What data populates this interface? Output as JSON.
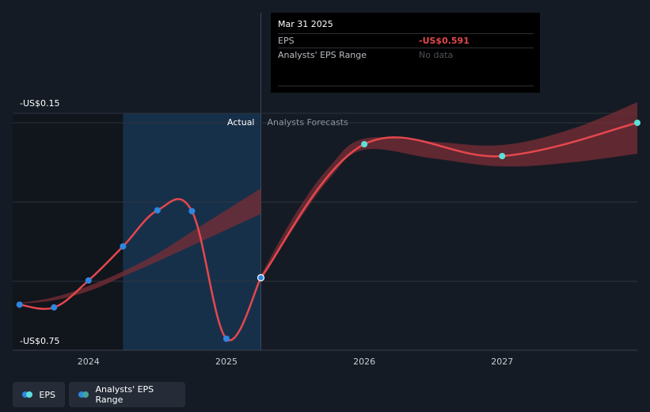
{
  "tooltip": {
    "date": "Mar 31 2025",
    "rows": [
      {
        "label": "EPS",
        "value": "-US$0.591"
      },
      {
        "label": "Analysts' EPS Range",
        "value": "No data"
      }
    ]
  },
  "legend": [
    {
      "label": "EPS",
      "colors": [
        "#2f86e0",
        "#5ce0d8"
      ]
    },
    {
      "label": "Analysts' EPS Range",
      "colors": [
        "#2f86e0",
        "#42a59c"
      ]
    }
  ],
  "colors": {
    "background": "#151b24",
    "actual_point": "#2f86e0",
    "forecast_point": "#5ce0d8",
    "line": "#e5474e",
    "band": "#7a2e36",
    "actual_region": "#17304a",
    "past_region": "#11151c"
  },
  "chart_data": {
    "type": "line",
    "title": "",
    "ylim": [
      -0.75,
      -0.15
    ],
    "y_ticks": [
      {
        "value": -0.15,
        "label": "-US$0.15"
      },
      {
        "value": -0.75,
        "label": "-US$0.75"
      }
    ],
    "y_gridlines": [
      -0.15,
      -0.2,
      -0.4,
      -0.6
    ],
    "xlim": [
      2023.45,
      2027.98
    ],
    "x_ticks": [
      {
        "value": 2024.0,
        "label": "2024"
      },
      {
        "value": 2025.0,
        "label": "2025"
      },
      {
        "value": 2026.0,
        "label": "2026"
      },
      {
        "value": 2027.0,
        "label": "2027"
      }
    ],
    "actual_region_start": 2024.25,
    "divider_x": 2025.25,
    "section_labels": {
      "actual": "Actual",
      "forecast": "Analysts Forecasts"
    },
    "series": [
      {
        "name": "EPS",
        "points": [
          {
            "x": 2023.5,
            "y": -0.659
          },
          {
            "x": 2023.75,
            "y": -0.666
          },
          {
            "x": 2024.0,
            "y": -0.598
          },
          {
            "x": 2024.25,
            "y": -0.512
          },
          {
            "x": 2024.5,
            "y": -0.421
          },
          {
            "x": 2024.75,
            "y": -0.423
          },
          {
            "x": 2025.0,
            "y": -0.745
          },
          {
            "x": 2025.25,
            "y": -0.591
          }
        ]
      },
      {
        "name": "EPS forecast",
        "points": [
          {
            "x": 2025.25,
            "y": -0.591
          },
          {
            "x": 2026.0,
            "y": -0.254
          },
          {
            "x": 2027.0,
            "y": -0.284
          },
          {
            "x": 2027.98,
            "y": -0.2
          }
        ]
      }
    ],
    "band_actual": {
      "x": [
        2023.5,
        2023.75,
        2024.0,
        2024.25,
        2024.5,
        2024.75,
        2025.0,
        2025.25
      ],
      "upper": [
        -0.655,
        -0.64,
        -0.612,
        -0.575,
        -0.53,
        -0.475,
        -0.42,
        -0.366
      ],
      "lower": [
        -0.657,
        -0.648,
        -0.625,
        -0.588,
        -0.55,
        -0.51,
        -0.47,
        -0.43
      ]
    },
    "band_forecast": {
      "x": [
        2025.25,
        2025.5,
        2025.75,
        2026.0,
        2026.5,
        2027.0,
        2027.5,
        2027.98
      ],
      "upper": [
        -0.585,
        -0.43,
        -0.31,
        -0.24,
        -0.248,
        -0.256,
        -0.216,
        -0.148
      ],
      "lower": [
        -0.597,
        -0.46,
        -0.34,
        -0.268,
        -0.29,
        -0.31,
        -0.3,
        -0.278
      ]
    }
  }
}
